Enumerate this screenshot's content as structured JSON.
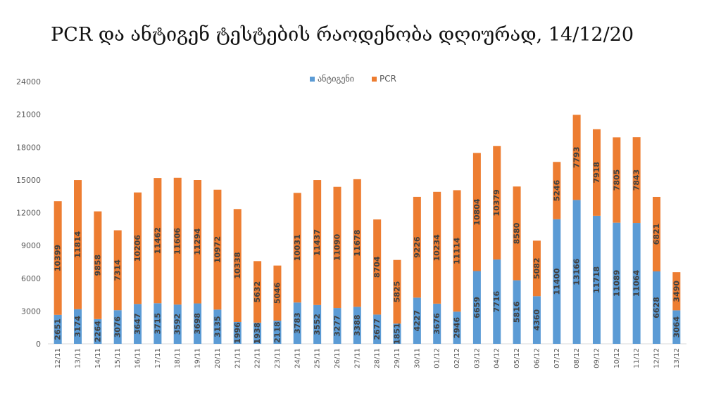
{
  "chart_data": {
    "type": "bar",
    "stacked": true,
    "title": "PCR და ანტიგენ ტესტების რაოდენობა დღიურად, 14/12/20",
    "xlabel": "",
    "ylabel": "",
    "ylim": [
      0,
      24000
    ],
    "yticks": [
      "0",
      "3000",
      "6000",
      "9000",
      "12000",
      "15000",
      "18000",
      "21000",
      "24000"
    ],
    "legend_position": "top-center",
    "grid": false,
    "categories": [
      "12/11",
      "13/11",
      "14/11",
      "15/11",
      "16/11",
      "17/11",
      "18/11",
      "19/11",
      "20/11",
      "21/11",
      "22/11",
      "23/11",
      "24/11",
      "25/11",
      "26/11",
      "27/11",
      "28/11",
      "29/11",
      "30/11",
      "01/12",
      "02/12",
      "03/12",
      "04/12",
      "05/12",
      "06/12",
      "07/12",
      "08/12",
      "09/12",
      "10/12",
      "11/12",
      "12/12",
      "13/12"
    ],
    "series": [
      {
        "name": "ანტიგენი",
        "color": "#5b9bd5",
        "values": [
          2651,
          3174,
          2264,
          3076,
          3647,
          3715,
          3592,
          3698,
          3135,
          1996,
          1938,
          2118,
          3783,
          3552,
          3277,
          3388,
          2677,
          1851,
          4227,
          3676,
          2946,
          6659,
          7716,
          5816,
          4360,
          11400,
          13166,
          11718,
          11089,
          11064,
          6628,
          3064
        ]
      },
      {
        "name": "PCR",
        "color": "#ed7d31",
        "values": [
          10399,
          11814,
          9858,
          7314,
          10206,
          11462,
          11606,
          11294,
          10972,
          10338,
          5632,
          5046,
          10031,
          11437,
          11090,
          11678,
          8704,
          5825,
          9226,
          10234,
          11114,
          10804,
          10379,
          8580,
          5082,
          5246,
          7793,
          7918,
          7805,
          7843,
          6821,
          3490
        ]
      }
    ]
  }
}
